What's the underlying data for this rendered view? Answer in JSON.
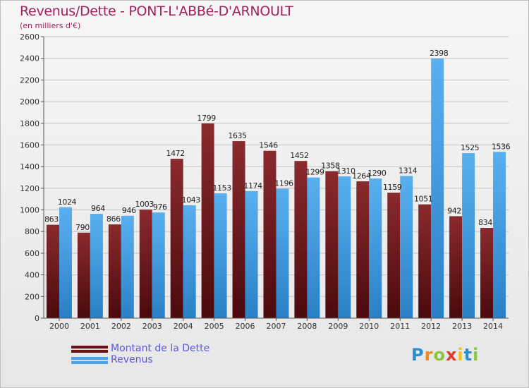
{
  "header": {
    "title": "Revenus/Dette - PONT-L'ABBé-D'ARNOULT",
    "subtitle": "(en milliers d'€)"
  },
  "legend": {
    "debt_label": "Montant de la Dette",
    "revenue_label": "Revenus"
  },
  "logo": {
    "letters": [
      "P",
      "r",
      "o",
      "x",
      "i",
      "t",
      "i"
    ],
    "colors": [
      "#2a8fd0",
      "#f08a1c",
      "#8cc63f",
      "#e23b2e",
      "#f0c419",
      "#2a8fd0",
      "#8cc63f"
    ]
  },
  "colors": {
    "debt": "#7a1f23",
    "debt_light": "#5a0f14",
    "revenue": "#4aa3e6",
    "revenue_dark": "#2a7fc4"
  },
  "chart_data": {
    "type": "bar",
    "title": "Revenus/Dette - PONT-L'ABBé-D'ARNOULT",
    "subtitle": "(en milliers d'€)",
    "categories": [
      "2000",
      "2001",
      "2002",
      "2003",
      "2004",
      "2005",
      "2006",
      "2007",
      "2008",
      "2009",
      "2010",
      "2011",
      "2012",
      "2013",
      "2014"
    ],
    "series": [
      {
        "name": "Montant de la Dette",
        "values": [
          863,
          790,
          866,
          1003,
          1472,
          1799,
          1635,
          1546,
          1452,
          1358,
          1264,
          1159,
          1051,
          942,
          834
        ]
      },
      {
        "name": "Revenus",
        "values": [
          1024,
          964,
          946,
          976,
          1043,
          1153,
          1174,
          1196,
          1299,
          1310,
          1290,
          1314,
          2398,
          1525,
          1536
        ]
      }
    ],
    "ylim": [
      0,
      2600
    ],
    "yticks": [
      0,
      200,
      400,
      600,
      800,
      1000,
      1200,
      1400,
      1600,
      1800,
      2000,
      2200,
      2400,
      2600
    ],
    "grid": true,
    "legend_position": "bottom-left"
  }
}
